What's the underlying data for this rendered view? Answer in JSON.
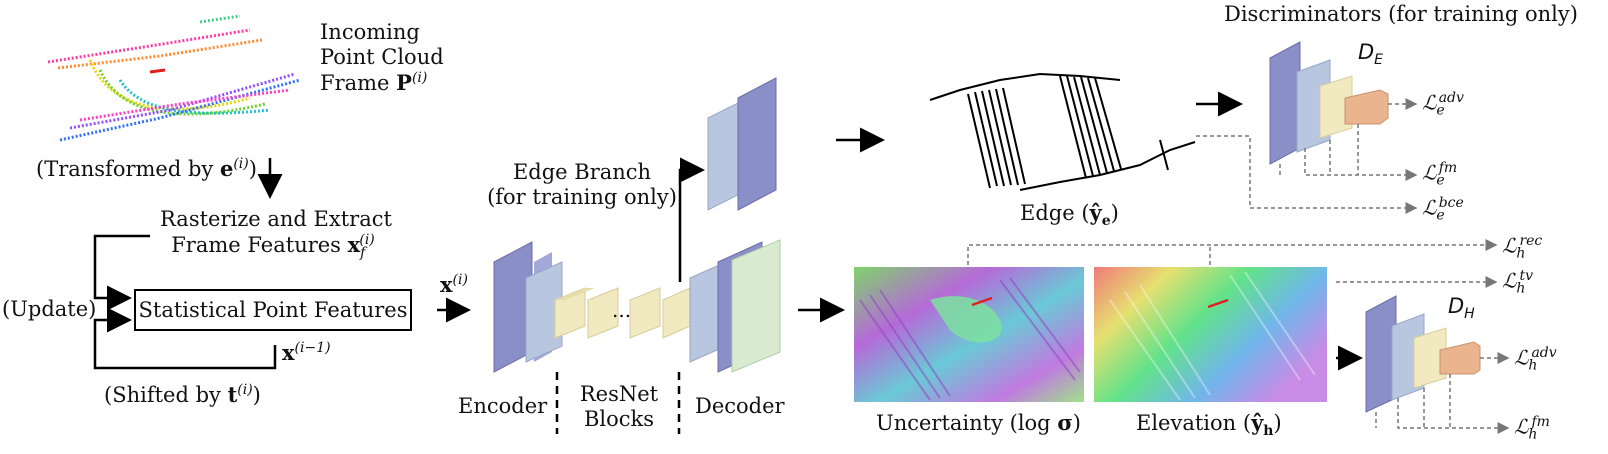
{
  "incoming": {
    "line1": "Incoming",
    "line2": "Point Cloud",
    "line3": "Frame",
    "symbol": "P",
    "sup": "(i)"
  },
  "transformed": {
    "prefix": "(Transformed by ",
    "symbol": "e",
    "sup": "(i)",
    "suffix": ")"
  },
  "rasterize": {
    "line1": "Rasterize and Extract",
    "line2": "Frame Features ",
    "symbol": "x",
    "sub": "f",
    "sup": "(i)"
  },
  "update": "(Update)",
  "stat_box": "Statistical Point Features",
  "prev": {
    "symbol": "x",
    "sup": "(i−1)"
  },
  "shifted": {
    "prefix": "(Shifted by ",
    "symbol": "t",
    "sup": "(i)",
    "suffix": ")"
  },
  "xi": {
    "symbol": "x",
    "sup": "(i)"
  },
  "edge_branch": {
    "line1": "Edge Branch",
    "line2": "(for training only)"
  },
  "encoder": "Encoder",
  "resnet": {
    "line1": "ResNet",
    "line2": "Blocks"
  },
  "decoder": "Decoder",
  "dots": "...",
  "edge_label": {
    "prefix": "Edge  (",
    "symbol": "ŷ",
    "sub": "e",
    "suffix": ")"
  },
  "uncertainty_label": {
    "prefix": "Uncertainty  (log ",
    "symbol": "σ",
    "suffix": ")"
  },
  "elevation_label": {
    "prefix": "Elevation  (",
    "symbol": "ŷ",
    "sub": "h",
    "suffix": ")"
  },
  "discriminators": "Discriminators (for training only)",
  "d_e": {
    "symbol": "D",
    "sub": "E"
  },
  "d_h": {
    "symbol": "D",
    "sub": "H"
  },
  "losses": {
    "e_adv": {
      "sub": "e",
      "sup": "adv"
    },
    "e_fm": {
      "sub": "e",
      "sup": "fm"
    },
    "e_bce": {
      "sub": "e",
      "sup": "bce"
    },
    "h_rec": {
      "sub": "h",
      "sup": "rec"
    },
    "h_tv": {
      "sub": "h",
      "sup": "tv"
    },
    "h_adv": {
      "sub": "h",
      "sup": "adv"
    },
    "h_fm": {
      "sub": "h",
      "sup": "fm"
    },
    "symbol": "ℒ"
  },
  "colors": {
    "enc_blue": "#8b8fc7",
    "enc_light": "#b9c6e0",
    "res_yellow": "#f1eac0",
    "dec_green": "#d8ebd0",
    "disc_orange": "#e9b48e"
  }
}
